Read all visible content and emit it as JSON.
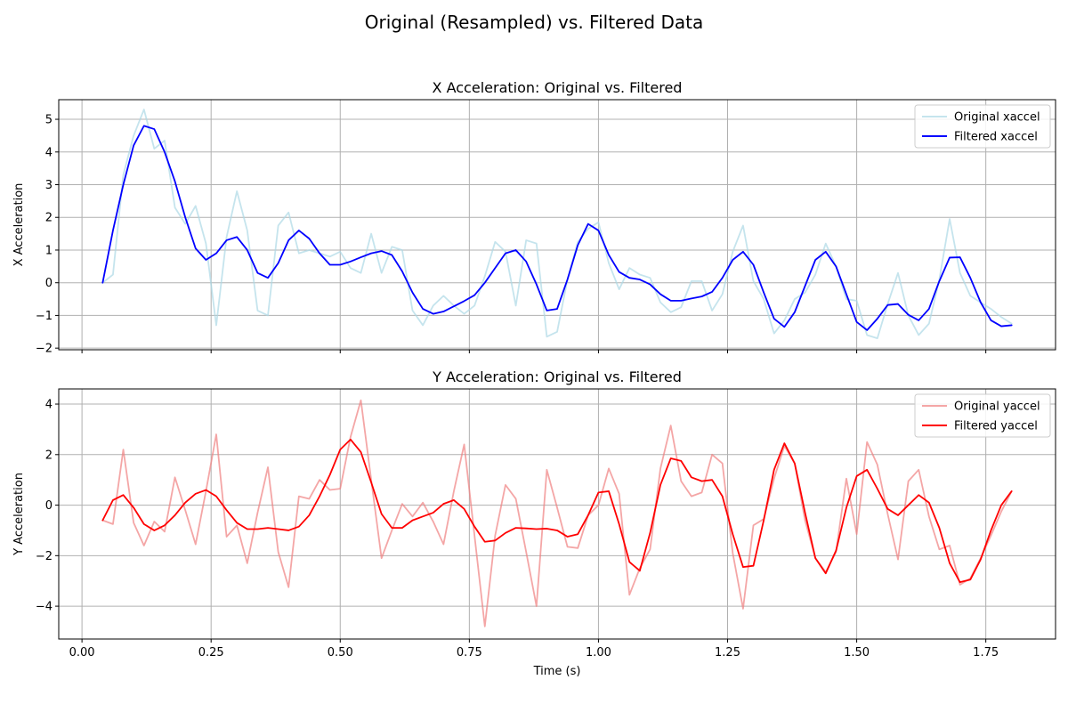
{
  "figure": {
    "title": "Original (Resampled) vs. Filtered Data",
    "xlabel": "Time (s)"
  },
  "chart_data": [
    {
      "type": "line",
      "title": "X Acceleration: Original vs. Filtered",
      "xlabel": "",
      "ylabel": "X Acceleration",
      "xlim": [
        -0.045,
        1.885
      ],
      "ylim": [
        -2.05,
        5.6
      ],
      "xticks": [
        0.0,
        0.25,
        0.5,
        0.75,
        1.0,
        1.25,
        1.5,
        1.75
      ],
      "xtick_labels": [],
      "yticks": [
        -2,
        -1,
        0,
        1,
        2,
        3,
        4,
        5
      ],
      "ytick_labels": [
        "−2",
        "−1",
        "0",
        "1",
        "2",
        "3",
        "4",
        "5"
      ],
      "grid": true,
      "legend_position": "top-right",
      "x": [
        0.04,
        0.06,
        0.08,
        0.1,
        0.12,
        0.14,
        0.16,
        0.18,
        0.2,
        0.22,
        0.24,
        0.26,
        0.28,
        0.3,
        0.32,
        0.34,
        0.36,
        0.38,
        0.4,
        0.42,
        0.44,
        0.46,
        0.48,
        0.5,
        0.52,
        0.54,
        0.56,
        0.58,
        0.6,
        0.62,
        0.64,
        0.66,
        0.68,
        0.7,
        0.72,
        0.74,
        0.76,
        0.78,
        0.8,
        0.82,
        0.84,
        0.86,
        0.88,
        0.9,
        0.92,
        0.94,
        0.96,
        0.98,
        1.0,
        1.02,
        1.04,
        1.06,
        1.08,
        1.1,
        1.12,
        1.14,
        1.16,
        1.18,
        1.2,
        1.22,
        1.24,
        1.26,
        1.28,
        1.3,
        1.32,
        1.34,
        1.36,
        1.38,
        1.4,
        1.42,
        1.44,
        1.46,
        1.48,
        1.5,
        1.52,
        1.54,
        1.56,
        1.58,
        1.6,
        1.62,
        1.64,
        1.66,
        1.68,
        1.7,
        1.72,
        1.74,
        1.76,
        1.78,
        1.8
      ],
      "series": [
        {
          "name": "Original xaccel",
          "color": "#add8e6",
          "opacity": 0.7,
          "values": [
            0.0,
            0.25,
            3.3,
            4.5,
            5.3,
            4.1,
            4.35,
            2.3,
            1.8,
            2.35,
            1.2,
            -1.3,
            1.4,
            2.8,
            1.6,
            -0.85,
            -1.0,
            1.75,
            2.15,
            0.9,
            1.0,
            0.9,
            0.8,
            0.95,
            0.45,
            0.3,
            1.5,
            0.3,
            1.1,
            1.0,
            -0.85,
            -1.3,
            -0.7,
            -0.4,
            -0.7,
            -0.95,
            -0.7,
            0.2,
            1.25,
            0.95,
            -0.7,
            1.3,
            1.2,
            -1.65,
            -1.5,
            0.1,
            1.25,
            1.65,
            1.85,
            0.6,
            -0.2,
            0.45,
            0.25,
            0.15,
            -0.6,
            -0.9,
            -0.75,
            0.05,
            0.05,
            -0.85,
            -0.35,
            0.95,
            1.75,
            0.05,
            -0.5,
            -1.55,
            -1.15,
            -0.5,
            -0.3,
            0.25,
            1.2,
            0.5,
            -0.5,
            -0.55,
            -1.6,
            -1.7,
            -0.65,
            0.3,
            -1.0,
            -1.6,
            -1.25,
            0.1,
            1.95,
            0.3,
            -0.4,
            -0.6,
            -0.8,
            -1.05,
            -1.25
          ]
        },
        {
          "name": "Filtered xaccel",
          "color": "#0000ff",
          "opacity": 1,
          "values": [
            0.0,
            1.6,
            3.0,
            4.2,
            4.8,
            4.7,
            4.0,
            3.1,
            2.0,
            1.05,
            0.7,
            0.9,
            1.3,
            1.4,
            1.0,
            0.3,
            0.15,
            0.6,
            1.3,
            1.6,
            1.35,
            0.9,
            0.55,
            0.55,
            0.65,
            0.78,
            0.9,
            0.97,
            0.85,
            0.35,
            -0.3,
            -0.8,
            -0.95,
            -0.88,
            -0.72,
            -0.56,
            -0.38,
            0.0,
            0.45,
            0.9,
            1.0,
            0.65,
            -0.05,
            -0.85,
            -0.8,
            0.1,
            1.15,
            1.8,
            1.6,
            0.85,
            0.33,
            0.15,
            0.1,
            -0.05,
            -0.35,
            -0.55,
            -0.55,
            -0.48,
            -0.42,
            -0.28,
            0.15,
            0.7,
            0.95,
            0.55,
            -0.3,
            -1.1,
            -1.35,
            -0.9,
            -0.1,
            0.7,
            0.95,
            0.5,
            -0.35,
            -1.2,
            -1.45,
            -1.1,
            -0.68,
            -0.65,
            -0.98,
            -1.15,
            -0.8,
            0.05,
            0.77,
            0.78,
            0.15,
            -0.6,
            -1.15,
            -1.33,
            -1.3
          ]
        }
      ]
    },
    {
      "type": "line",
      "title": "Y Acceleration: Original vs. Filtered",
      "xlabel": "Time (s)",
      "ylabel": "Y Acceleration",
      "xlim": [
        -0.045,
        1.885
      ],
      "ylim": [
        -5.3,
        4.6
      ],
      "xticks": [
        0.0,
        0.25,
        0.5,
        0.75,
        1.0,
        1.25,
        1.5,
        1.75
      ],
      "xtick_labels": [
        "0.00",
        "0.25",
        "0.50",
        "0.75",
        "1.00",
        "1.25",
        "1.50",
        "1.75"
      ],
      "yticks": [
        -4,
        -2,
        0,
        2,
        4
      ],
      "ytick_labels": [
        "−4",
        "−2",
        "0",
        "2",
        "4"
      ],
      "grid": true,
      "legend_position": "top-right",
      "x": [
        0.04,
        0.06,
        0.08,
        0.1,
        0.12,
        0.14,
        0.16,
        0.18,
        0.2,
        0.22,
        0.24,
        0.26,
        0.28,
        0.3,
        0.32,
        0.34,
        0.36,
        0.38,
        0.4,
        0.42,
        0.44,
        0.46,
        0.48,
        0.5,
        0.52,
        0.54,
        0.56,
        0.58,
        0.6,
        0.62,
        0.64,
        0.66,
        0.68,
        0.7,
        0.72,
        0.74,
        0.76,
        0.78,
        0.8,
        0.82,
        0.84,
        0.86,
        0.88,
        0.9,
        0.92,
        0.94,
        0.96,
        0.98,
        1.0,
        1.02,
        1.04,
        1.06,
        1.08,
        1.1,
        1.12,
        1.14,
        1.16,
        1.18,
        1.2,
        1.22,
        1.24,
        1.26,
        1.28,
        1.3,
        1.32,
        1.34,
        1.36,
        1.38,
        1.4,
        1.42,
        1.44,
        1.46,
        1.48,
        1.5,
        1.52,
        1.54,
        1.56,
        1.58,
        1.6,
        1.62,
        1.64,
        1.66,
        1.68,
        1.7,
        1.72,
        1.74,
        1.76,
        1.78,
        1.8
      ],
      "series": [
        {
          "name": "Original yaccel",
          "color": "#f08080",
          "opacity": 0.7,
          "values": [
            -0.6,
            -0.75,
            2.2,
            -0.7,
            -1.6,
            -0.65,
            -1.05,
            1.1,
            -0.2,
            -1.55,
            0.55,
            2.8,
            -1.25,
            -0.8,
            -2.3,
            -0.3,
            1.5,
            -1.85,
            -3.25,
            0.35,
            0.25,
            1.0,
            0.6,
            0.65,
            2.7,
            4.15,
            1.0,
            -2.1,
            -1.0,
            0.05,
            -0.45,
            0.1,
            -0.65,
            -1.55,
            0.55,
            2.4,
            -1.2,
            -4.8,
            -1.2,
            0.8,
            0.25,
            -1.85,
            -4.0,
            1.4,
            -0.1,
            -1.65,
            -1.7,
            -0.4,
            0.0,
            1.45,
            0.45,
            -3.55,
            -2.5,
            -1.75,
            1.45,
            3.15,
            0.95,
            0.35,
            0.5,
            2.0,
            1.65,
            -1.9,
            -4.1,
            -0.8,
            -0.55,
            1.05,
            2.35,
            1.65,
            -0.6,
            -2.1,
            -2.65,
            -1.85,
            1.05,
            -1.15,
            2.5,
            1.6,
            -0.35,
            -2.15,
            0.95,
            1.4,
            -0.45,
            -1.75,
            -1.6,
            -3.15,
            -2.9,
            -2.1,
            -1.2,
            -0.25,
            0.55
          ]
        },
        {
          "name": "Filtered yaccel",
          "color": "#ff0000",
          "opacity": 1,
          "values": [
            -0.6,
            0.2,
            0.4,
            -0.1,
            -0.75,
            -1.0,
            -0.8,
            -0.4,
            0.1,
            0.45,
            0.6,
            0.35,
            -0.2,
            -0.7,
            -0.95,
            -0.95,
            -0.9,
            -0.95,
            -1.0,
            -0.85,
            -0.4,
            0.35,
            1.2,
            2.2,
            2.6,
            2.1,
            0.9,
            -0.35,
            -0.9,
            -0.9,
            -0.6,
            -0.45,
            -0.3,
            0.05,
            0.2,
            -0.15,
            -0.85,
            -1.45,
            -1.4,
            -1.1,
            -0.9,
            -0.92,
            -0.95,
            -0.93,
            -1.0,
            -1.25,
            -1.15,
            -0.4,
            0.5,
            0.55,
            -0.75,
            -2.25,
            -2.6,
            -1.1,
            0.8,
            1.85,
            1.75,
            1.1,
            0.95,
            1.0,
            0.35,
            -1.15,
            -2.45,
            -2.4,
            -0.6,
            1.4,
            2.45,
            1.65,
            -0.3,
            -2.1,
            -2.7,
            -1.8,
            -0.1,
            1.15,
            1.4,
            0.65,
            -0.15,
            -0.4,
            0.0,
            0.4,
            0.1,
            -0.9,
            -2.3,
            -3.05,
            -2.95,
            -2.15,
            -1.0,
            0.0,
            0.55
          ]
        }
      ]
    }
  ]
}
